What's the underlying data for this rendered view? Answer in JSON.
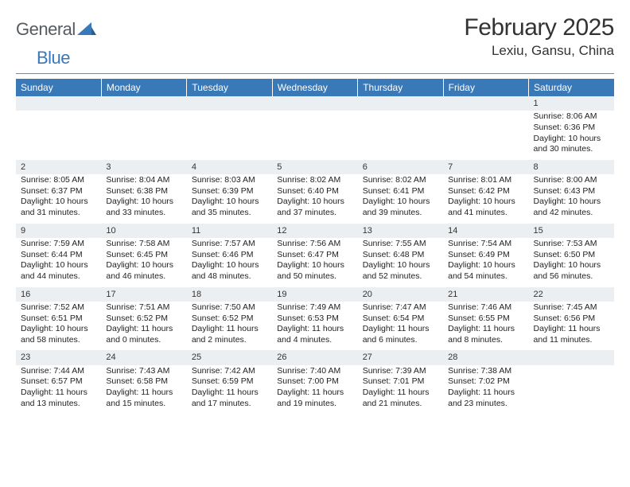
{
  "brand": {
    "part1": "General",
    "part2": "Blue"
  },
  "title": "February 2025",
  "location": "Lexiu, Gansu, China",
  "colors": {
    "header_bg": "#3a79b7",
    "header_text": "#ffffff",
    "daynum_bg": "#eceff2",
    "rule": "#808793",
    "text": "#222222",
    "logo_gray": "#555b61",
    "logo_blue": "#3a79b7"
  },
  "typography": {
    "title_fontsize": 30,
    "location_fontsize": 17,
    "weekday_fontsize": 12,
    "body_fontsize": 10.5,
    "logo_fontsize": 22
  },
  "weekdays": [
    "Sunday",
    "Monday",
    "Tuesday",
    "Wednesday",
    "Thursday",
    "Friday",
    "Saturday"
  ],
  "weeks": [
    [
      null,
      null,
      null,
      null,
      null,
      null,
      {
        "n": "1",
        "sunrise": "8:06 AM",
        "sunset": "6:36 PM",
        "daylight": "10 hours and 30 minutes."
      }
    ],
    [
      {
        "n": "2",
        "sunrise": "8:05 AM",
        "sunset": "6:37 PM",
        "daylight": "10 hours and 31 minutes."
      },
      {
        "n": "3",
        "sunrise": "8:04 AM",
        "sunset": "6:38 PM",
        "daylight": "10 hours and 33 minutes."
      },
      {
        "n": "4",
        "sunrise": "8:03 AM",
        "sunset": "6:39 PM",
        "daylight": "10 hours and 35 minutes."
      },
      {
        "n": "5",
        "sunrise": "8:02 AM",
        "sunset": "6:40 PM",
        "daylight": "10 hours and 37 minutes."
      },
      {
        "n": "6",
        "sunrise": "8:02 AM",
        "sunset": "6:41 PM",
        "daylight": "10 hours and 39 minutes."
      },
      {
        "n": "7",
        "sunrise": "8:01 AM",
        "sunset": "6:42 PM",
        "daylight": "10 hours and 41 minutes."
      },
      {
        "n": "8",
        "sunrise": "8:00 AM",
        "sunset": "6:43 PM",
        "daylight": "10 hours and 42 minutes."
      }
    ],
    [
      {
        "n": "9",
        "sunrise": "7:59 AM",
        "sunset": "6:44 PM",
        "daylight": "10 hours and 44 minutes."
      },
      {
        "n": "10",
        "sunrise": "7:58 AM",
        "sunset": "6:45 PM",
        "daylight": "10 hours and 46 minutes."
      },
      {
        "n": "11",
        "sunrise": "7:57 AM",
        "sunset": "6:46 PM",
        "daylight": "10 hours and 48 minutes."
      },
      {
        "n": "12",
        "sunrise": "7:56 AM",
        "sunset": "6:47 PM",
        "daylight": "10 hours and 50 minutes."
      },
      {
        "n": "13",
        "sunrise": "7:55 AM",
        "sunset": "6:48 PM",
        "daylight": "10 hours and 52 minutes."
      },
      {
        "n": "14",
        "sunrise": "7:54 AM",
        "sunset": "6:49 PM",
        "daylight": "10 hours and 54 minutes."
      },
      {
        "n": "15",
        "sunrise": "7:53 AM",
        "sunset": "6:50 PM",
        "daylight": "10 hours and 56 minutes."
      }
    ],
    [
      {
        "n": "16",
        "sunrise": "7:52 AM",
        "sunset": "6:51 PM",
        "daylight": "10 hours and 58 minutes."
      },
      {
        "n": "17",
        "sunrise": "7:51 AM",
        "sunset": "6:52 PM",
        "daylight": "11 hours and 0 minutes."
      },
      {
        "n": "18",
        "sunrise": "7:50 AM",
        "sunset": "6:52 PM",
        "daylight": "11 hours and 2 minutes."
      },
      {
        "n": "19",
        "sunrise": "7:49 AM",
        "sunset": "6:53 PM",
        "daylight": "11 hours and 4 minutes."
      },
      {
        "n": "20",
        "sunrise": "7:47 AM",
        "sunset": "6:54 PM",
        "daylight": "11 hours and 6 minutes."
      },
      {
        "n": "21",
        "sunrise": "7:46 AM",
        "sunset": "6:55 PM",
        "daylight": "11 hours and 8 minutes."
      },
      {
        "n": "22",
        "sunrise": "7:45 AM",
        "sunset": "6:56 PM",
        "daylight": "11 hours and 11 minutes."
      }
    ],
    [
      {
        "n": "23",
        "sunrise": "7:44 AM",
        "sunset": "6:57 PM",
        "daylight": "11 hours and 13 minutes."
      },
      {
        "n": "24",
        "sunrise": "7:43 AM",
        "sunset": "6:58 PM",
        "daylight": "11 hours and 15 minutes."
      },
      {
        "n": "25",
        "sunrise": "7:42 AM",
        "sunset": "6:59 PM",
        "daylight": "11 hours and 17 minutes."
      },
      {
        "n": "26",
        "sunrise": "7:40 AM",
        "sunset": "7:00 PM",
        "daylight": "11 hours and 19 minutes."
      },
      {
        "n": "27",
        "sunrise": "7:39 AM",
        "sunset": "7:01 PM",
        "daylight": "11 hours and 21 minutes."
      },
      {
        "n": "28",
        "sunrise": "7:38 AM",
        "sunset": "7:02 PM",
        "daylight": "11 hours and 23 minutes."
      },
      null
    ]
  ],
  "labels": {
    "sunrise": "Sunrise: ",
    "sunset": "Sunset: ",
    "daylight": "Daylight: "
  }
}
